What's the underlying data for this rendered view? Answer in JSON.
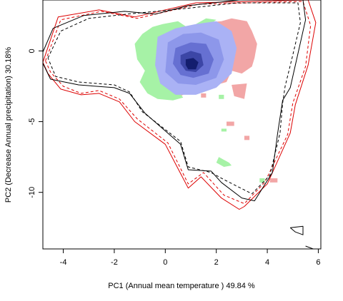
{
  "chart_data": {
    "type": "contour-overlay",
    "xlabel": "PC1 (Annual mean temperature ) 49.84 %",
    "ylabel": "PC2 (Decrease Annual precipitation) 30.18%",
    "xlim": [
      -4.8,
      6.1
    ],
    "ylim": [
      -14.0,
      3.6
    ],
    "x_ticks": [
      -4,
      -2,
      0,
      2,
      4,
      6
    ],
    "y_ticks": [
      0,
      -5,
      -10
    ],
    "colors": {
      "red": "#dd0000",
      "black": "#000000",
      "green_area": "#a6f2a6",
      "pink_area": "#f2a6a6",
      "blue_light": "#aab2f5",
      "blue_dark": "#141e6e"
    },
    "envelopes": [
      {
        "color": "red",
        "dashed": false,
        "points": [
          [
            -4.8,
            -0.8
          ],
          [
            -4.2,
            2.4
          ],
          [
            -2.6,
            2.9
          ],
          [
            -1.2,
            2.4
          ],
          [
            1.2,
            3.4
          ],
          [
            5.6,
            3.6
          ],
          [
            5.9,
            2.0
          ],
          [
            5.6,
            -1.0
          ],
          [
            5.1,
            -3.8
          ],
          [
            4.9,
            -5.8
          ],
          [
            4.0,
            -9.4
          ],
          [
            3.1,
            -11.0
          ],
          [
            2.9,
            -11.2
          ],
          [
            2.2,
            -10.4
          ],
          [
            1.4,
            -8.9
          ],
          [
            0.9,
            -9.7
          ],
          [
            0.0,
            -6.6
          ],
          [
            -1.2,
            -5.0
          ],
          [
            -1.8,
            -3.6
          ],
          [
            -2.6,
            -3.0
          ],
          [
            -3.3,
            -3.1
          ],
          [
            -4.1,
            -2.7
          ],
          [
            -4.6,
            -1.6
          ],
          [
            -4.8,
            -0.8
          ]
        ]
      },
      {
        "color": "red",
        "dashed": true,
        "points": [
          [
            -4.7,
            -0.7
          ],
          [
            -4.1,
            2.2
          ],
          [
            -2.5,
            2.8
          ],
          [
            -1.1,
            2.3
          ],
          [
            1.3,
            3.3
          ],
          [
            5.4,
            3.5
          ],
          [
            5.7,
            1.8
          ],
          [
            5.5,
            -1.1
          ],
          [
            5.0,
            -3.7
          ],
          [
            4.8,
            -5.9
          ],
          [
            3.9,
            -9.3
          ],
          [
            3.1,
            -10.8
          ],
          [
            2.3,
            -10.2
          ],
          [
            1.5,
            -8.6
          ],
          [
            0.9,
            -9.4
          ],
          [
            0.1,
            -6.5
          ],
          [
            -1.1,
            -4.8
          ],
          [
            -1.8,
            -3.4
          ],
          [
            -2.6,
            -2.8
          ],
          [
            -3.3,
            -3.0
          ],
          [
            -4.0,
            -2.5
          ],
          [
            -4.5,
            -1.5
          ],
          [
            -4.7,
            -0.7
          ]
        ]
      },
      {
        "color": "black",
        "dashed": false,
        "points": [
          [
            -4.9,
            -0.5
          ],
          [
            -4.4,
            1.6
          ],
          [
            -3.2,
            2.5
          ],
          [
            -1.6,
            2.8
          ],
          [
            -0.4,
            2.6
          ],
          [
            0.9,
            3.2
          ],
          [
            2.9,
            3.6
          ],
          [
            5.4,
            3.6
          ],
          [
            5.5,
            2.2
          ],
          [
            5.2,
            -0.2
          ],
          [
            4.9,
            -2.6
          ],
          [
            4.6,
            -3.5
          ],
          [
            4.4,
            -5.9
          ],
          [
            4.2,
            -8.6
          ],
          [
            3.5,
            -10.6
          ],
          [
            3.0,
            -10.4
          ],
          [
            2.2,
            -9.3
          ],
          [
            1.8,
            -8.5
          ],
          [
            0.9,
            -8.4
          ],
          [
            0.6,
            -6.6
          ],
          [
            -0.8,
            -4.4
          ],
          [
            -1.4,
            -3.0
          ],
          [
            -2.0,
            -2.6
          ],
          [
            -3.4,
            -2.4
          ],
          [
            -4.5,
            -2.0
          ],
          [
            -4.9,
            -0.5
          ]
        ]
      },
      {
        "color": "black",
        "dashed": true,
        "points": [
          [
            -4.6,
            -0.5
          ],
          [
            -4.1,
            1.4
          ],
          [
            -3.0,
            2.3
          ],
          [
            -1.5,
            2.6
          ],
          [
            0.8,
            3.0
          ],
          [
            2.8,
            3.4
          ],
          [
            5.2,
            3.4
          ],
          [
            5.3,
            2.0
          ],
          [
            5.0,
            -0.3
          ],
          [
            4.7,
            -2.5
          ],
          [
            4.6,
            -3.7
          ],
          [
            4.5,
            -5.8
          ],
          [
            4.1,
            -8.8
          ],
          [
            3.4,
            -10.1
          ],
          [
            2.3,
            -9.1
          ],
          [
            1.8,
            -8.6
          ],
          [
            0.9,
            -8.2
          ],
          [
            0.6,
            -6.4
          ],
          [
            -0.9,
            -4.3
          ],
          [
            -1.4,
            -2.9
          ],
          [
            -2.0,
            -2.4
          ],
          [
            -3.4,
            -2.2
          ],
          [
            -4.3,
            -1.8
          ],
          [
            -4.6,
            -0.5
          ]
        ]
      },
      {
        "color": "black",
        "dashed": false,
        "points": [
          [
            4.9,
            -12.5
          ],
          [
            5.4,
            -12.4
          ],
          [
            5.4,
            -13.0
          ],
          [
            5.1,
            -12.8
          ],
          [
            4.9,
            -12.5
          ]
        ]
      },
      {
        "color": "black",
        "dashed": false,
        "points": [
          [
            5.5,
            -13.8
          ],
          [
            5.8,
            -14.0
          ]
        ]
      }
    ],
    "areas": [
      {
        "color": "pink_area",
        "points": [
          [
            1.5,
            2.0
          ],
          [
            2.2,
            2.1
          ],
          [
            2.6,
            2.3
          ],
          [
            3.2,
            2.1
          ],
          [
            3.4,
            1.4
          ],
          [
            3.6,
            0.5
          ],
          [
            3.5,
            -0.5
          ],
          [
            3.4,
            -1.1
          ],
          [
            3.0,
            -1.6
          ],
          [
            2.6,
            -1.4
          ],
          [
            2.4,
            -2.2
          ],
          [
            2.0,
            -2.4
          ],
          [
            1.4,
            -2.6
          ],
          [
            0.9,
            -2.9
          ],
          [
            0.5,
            -3.3
          ],
          [
            0.4,
            -2.4
          ],
          [
            1.1,
            -2.0
          ],
          [
            2.0,
            -1.2
          ],
          [
            2.6,
            -0.5
          ],
          [
            2.2,
            0.6
          ],
          [
            1.5,
            2.0
          ]
        ]
      },
      {
        "color": "pink_area",
        "points": [
          [
            2.6,
            -2.4
          ],
          [
            3.2,
            -2.3
          ],
          [
            3.1,
            -3.4
          ],
          [
            2.7,
            -3.2
          ],
          [
            2.6,
            -2.4
          ]
        ]
      },
      {
        "color": "pink_area",
        "points": [
          [
            2.4,
            -5.0
          ],
          [
            2.7,
            -5.0
          ],
          [
            2.7,
            -5.3
          ],
          [
            2.4,
            -5.3
          ],
          [
            2.4,
            -5.0
          ]
        ]
      },
      {
        "color": "pink_area",
        "points": [
          [
            3.1,
            -6.0
          ],
          [
            3.3,
            -6.0
          ],
          [
            3.3,
            -6.3
          ],
          [
            3.1,
            -6.3
          ],
          [
            3.1,
            -6.0
          ]
        ]
      },
      {
        "color": "pink_area",
        "points": [
          [
            4.1,
            -9.0
          ],
          [
            4.4,
            -9.0
          ],
          [
            4.4,
            -9.3
          ],
          [
            4.1,
            -9.3
          ],
          [
            4.1,
            -9.0
          ]
        ]
      },
      {
        "color": "pink_area",
        "points": [
          [
            1.4,
            -3.0
          ],
          [
            1.6,
            -3.0
          ],
          [
            1.6,
            -3.3
          ],
          [
            1.4,
            -3.3
          ],
          [
            1.4,
            -3.0
          ]
        ]
      },
      {
        "color": "green_area",
        "points": [
          [
            -1.2,
            0.5
          ],
          [
            -0.9,
            1.2
          ],
          [
            -0.5,
            1.7
          ],
          [
            -0.1,
            1.9
          ],
          [
            0.5,
            2.1
          ],
          [
            1.0,
            1.5
          ],
          [
            0.5,
            0.6
          ],
          [
            -0.2,
            -0.5
          ],
          [
            0.0,
            -1.6
          ],
          [
            0.4,
            -2.6
          ],
          [
            0.7,
            -3.3
          ],
          [
            0.3,
            -3.5
          ],
          [
            -0.3,
            -3.4
          ],
          [
            -0.7,
            -3.0
          ],
          [
            -1.0,
            -2.2
          ],
          [
            -0.8,
            -1.4
          ],
          [
            -1.1,
            -0.6
          ],
          [
            -1.2,
            0.5
          ]
        ]
      },
      {
        "color": "green_area",
        "points": [
          [
            1.2,
            1.9
          ],
          [
            1.6,
            2.3
          ],
          [
            2.0,
            2.2
          ],
          [
            1.7,
            1.8
          ],
          [
            1.2,
            1.9
          ]
        ]
      },
      {
        "color": "green_area",
        "points": [
          [
            2.1,
            -7.5
          ],
          [
            2.5,
            -7.9
          ],
          [
            2.6,
            -8.1
          ],
          [
            2.3,
            -8.2
          ],
          [
            2.0,
            -7.9
          ],
          [
            2.1,
            -7.5
          ]
        ]
      },
      {
        "color": "green_area",
        "points": [
          [
            2.2,
            -5.5
          ],
          [
            2.4,
            -5.5
          ],
          [
            2.4,
            -5.7
          ],
          [
            2.2,
            -5.7
          ],
          [
            2.2,
            -5.5
          ]
        ]
      },
      {
        "color": "green_area",
        "points": [
          [
            3.7,
            -9.0
          ],
          [
            3.9,
            -9.0
          ],
          [
            3.9,
            -9.3
          ],
          [
            3.7,
            -9.3
          ],
          [
            3.7,
            -9.0
          ]
        ]
      },
      {
        "color": "green_area",
        "points": [
          [
            2.1,
            -3.1
          ],
          [
            2.3,
            -3.1
          ],
          [
            2.3,
            -3.4
          ],
          [
            2.1,
            -3.4
          ],
          [
            2.1,
            -3.1
          ]
        ]
      }
    ],
    "density": {
      "center": [
        1.0,
        -1.0
      ],
      "levels": [
        {
          "color": "#aab2f5",
          "points": [
            [
              -0.3,
              1.0
            ],
            [
              0.4,
              1.6
            ],
            [
              1.2,
              1.9
            ],
            [
              2.0,
              2.1
            ],
            [
              2.6,
              1.4
            ],
            [
              2.8,
              0.2
            ],
            [
              2.6,
              -1.6
            ],
            [
              2.0,
              -2.6
            ],
            [
              1.2,
              -3.1
            ],
            [
              0.4,
              -3.1
            ],
            [
              -0.2,
              -2.3
            ],
            [
              -0.4,
              -1.0
            ],
            [
              -0.3,
              1.0
            ]
          ]
        },
        {
          "color": "#8d97ea",
          "points": [
            [
              0.1,
              0.6
            ],
            [
              0.7,
              1.2
            ],
            [
              1.4,
              1.3
            ],
            [
              2.1,
              0.8
            ],
            [
              2.3,
              -0.6
            ],
            [
              2.0,
              -1.9
            ],
            [
              1.2,
              -2.4
            ],
            [
              0.5,
              -2.3
            ],
            [
              0.0,
              -1.5
            ],
            [
              0.1,
              0.6
            ]
          ]
        },
        {
          "color": "#6670d2",
          "points": [
            [
              0.4,
              0.2
            ],
            [
              1.0,
              0.6
            ],
            [
              1.6,
              0.5
            ],
            [
              1.9,
              -0.6
            ],
            [
              1.7,
              -1.6
            ],
            [
              1.1,
              -1.9
            ],
            [
              0.6,
              -1.7
            ],
            [
              0.3,
              -0.9
            ],
            [
              0.4,
              0.2
            ]
          ]
        },
        {
          "color": "#3c46a6",
          "points": [
            [
              0.6,
              -0.3
            ],
            [
              1.0,
              0.0
            ],
            [
              1.4,
              -0.2
            ],
            [
              1.5,
              -1.0
            ],
            [
              1.2,
              -1.5
            ],
            [
              0.8,
              -1.4
            ],
            [
              0.6,
              -0.9
            ],
            [
              0.6,
              -0.3
            ]
          ]
        },
        {
          "color": "#141e6e",
          "points": [
            [
              0.8,
              -0.6
            ],
            [
              1.1,
              -0.5
            ],
            [
              1.3,
              -0.8
            ],
            [
              1.2,
              -1.3
            ],
            [
              0.9,
              -1.3
            ],
            [
              0.8,
              -1.0
            ],
            [
              0.8,
              -0.6
            ]
          ]
        }
      ]
    }
  }
}
